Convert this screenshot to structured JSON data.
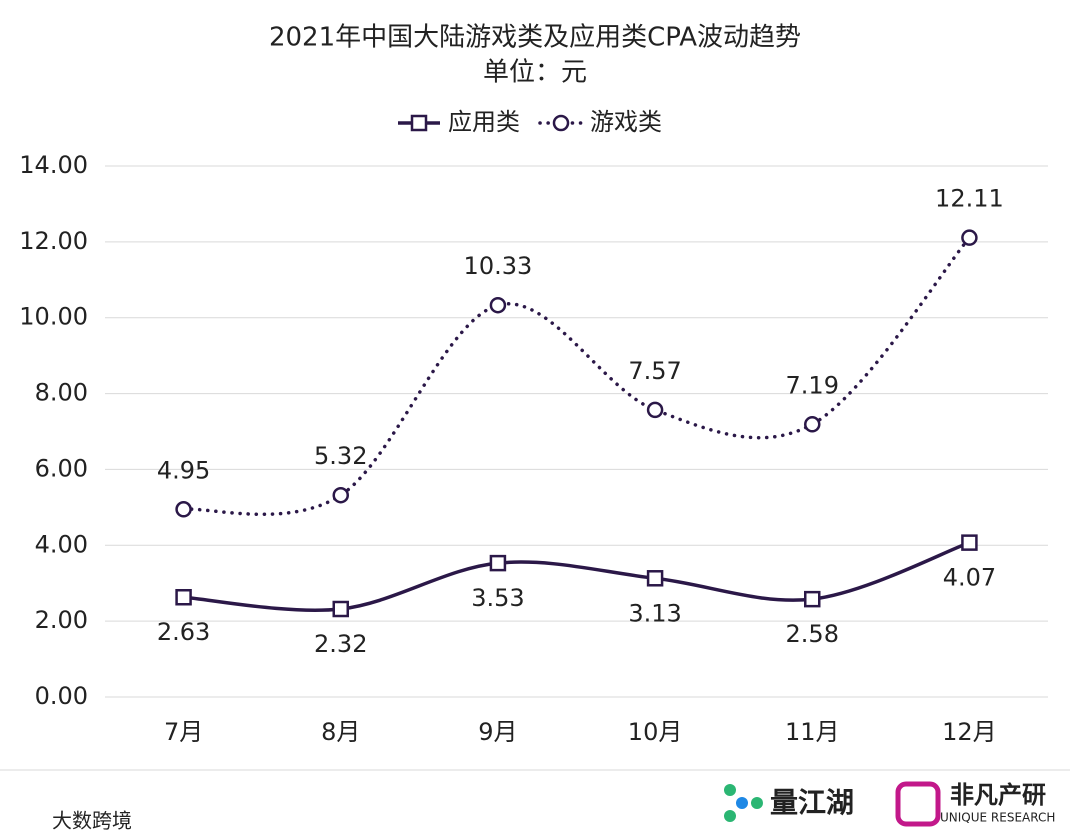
{
  "chart_data": {
    "type": "line",
    "title": "2021年中国大陆游戏类及应用类CPA波动趋势",
    "subtitle": "单位：元",
    "categories": [
      "7月",
      "8月",
      "9月",
      "10月",
      "11月",
      "12月"
    ],
    "series": [
      {
        "name": "应用类",
        "color": "#2b1848",
        "marker": "square",
        "dash": "solid",
        "label_position": "below",
        "values": [
          2.63,
          2.32,
          3.53,
          3.13,
          2.58,
          4.07
        ]
      },
      {
        "name": "游戏类",
        "color": "#2b1848",
        "marker": "circle",
        "dash": "dotted",
        "label_position": "above",
        "values": [
          4.95,
          5.32,
          10.33,
          7.57,
          7.19,
          12.11
        ]
      }
    ],
    "ylim": [
      0,
      14
    ],
    "yticks": [
      {
        "value": 0,
        "label": "0.00"
      },
      {
        "value": 2,
        "label": "2.00"
      },
      {
        "value": 4,
        "label": "4.00"
      },
      {
        "value": 6,
        "label": "6.00"
      },
      {
        "value": 8,
        "label": "8.00"
      },
      {
        "value": 10,
        "label": "10.00"
      },
      {
        "value": 12,
        "label": "12.00"
      },
      {
        "value": 14,
        "label": "14.00"
      }
    ],
    "grid": true,
    "smooth": true,
    "legend": "top"
  },
  "footer": {
    "brand_left": "量江湖",
    "brand_right": "非凡产研",
    "brand_right_sub": "UNIQUE RESEARCH",
    "watermark": "大数跨境"
  }
}
